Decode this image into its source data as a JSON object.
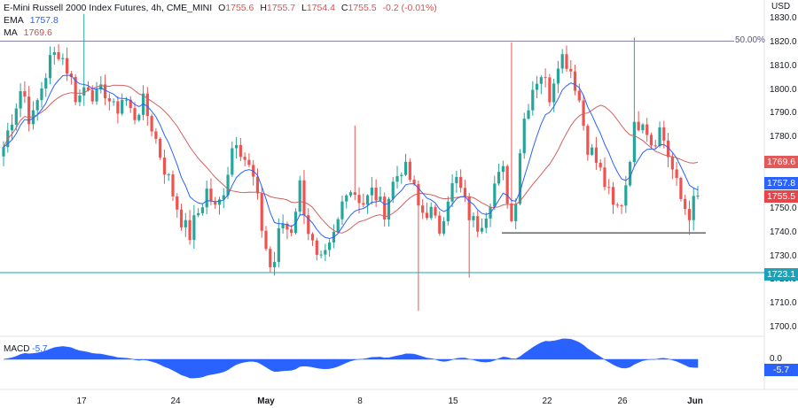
{
  "legend": {
    "symbol": "E-Mini Russell 2000 Index Futures, 4h, CME_MINI",
    "o_label": "O",
    "o": "1755.6",
    "h_label": "H",
    "h": "1755.7",
    "l_label": "L",
    "l": "1754.4",
    "c_label": "C",
    "c": "1755.5",
    "change": "-0.2 (-0.01%)",
    "ema_label": "EMA",
    "ema_value": "1757.8",
    "ma_label": "MA",
    "ma_value": "1769.6",
    "macd_label": "MACD",
    "macd_value": "-5.7"
  },
  "axis": {
    "unit": "USD",
    "y_ticks": [
      "1830.0",
      "1820.0",
      "1810.0",
      "1800.0",
      "1790.0",
      "1780.0",
      "1770.0",
      "1760.0",
      "1750.0",
      "1740.0",
      "1730.0",
      "1720.0",
      "1710.0",
      "1700.0"
    ],
    "x_ticks": [
      {
        "label": "17",
        "bold": false
      },
      {
        "label": "24",
        "bold": false
      },
      {
        "label": "May",
        "bold": true
      },
      {
        "label": "8",
        "bold": false
      },
      {
        "label": "15",
        "bold": false
      },
      {
        "label": "22",
        "bold": false
      },
      {
        "label": "26",
        "bold": false
      },
      {
        "label": "Jun",
        "bold": true
      }
    ],
    "macd_ticks": [
      "0.0"
    ]
  },
  "tags": {
    "ma": {
      "value": "1769.6",
      "color": "#e05a5a"
    },
    "ema": {
      "value": "1757.8",
      "color": "#2962ff"
    },
    "close": {
      "value": "1755.5",
      "color": "#e8454a"
    },
    "support": {
      "value": "1723.1",
      "color": "#1aa3b8"
    },
    "macd": {
      "value": "-5.7",
      "color": "#2962ff"
    }
  },
  "annotations": {
    "fib_label": "50.00%",
    "fib_level": 1820.5,
    "support_level": 1723.1,
    "recent_low_level": 1739.8
  },
  "colors": {
    "up": "#26a69a",
    "down": "#ef5350",
    "ema": "#2962ff",
    "ma": "#d16060",
    "macd": "#2962ff",
    "fib": "#8c82b0",
    "support": "#1aa3b8",
    "low_line": "#131722"
  },
  "chart_data": {
    "type": "candlestick",
    "title": "E-Mini Russell 2000 Index Futures, 4h, CME_MINI",
    "ylabel": "USD",
    "ylim": [
      1697,
      1833
    ],
    "x": [
      "17",
      "24",
      "May",
      "8",
      "15",
      "22",
      "26",
      "Jun"
    ],
    "close_path": [
      1776,
      1790,
      1802,
      1785,
      1800,
      1812,
      1817,
      1808,
      1795,
      1804,
      1796,
      1800,
      1790,
      1798,
      1788,
      1795,
      1785,
      1772,
      1760,
      1748,
      1738,
      1748,
      1758,
      1748,
      1762,
      1782,
      1772,
      1762,
      1740,
      1722,
      1745,
      1740,
      1760,
      1740,
      1725,
      1730,
      1742,
      1760,
      1757,
      1752,
      1758,
      1748,
      1760,
      1768,
      1762,
      1748,
      1750,
      1740,
      1756,
      1762,
      1750,
      1742,
      1748,
      1760,
      1765,
      1742,
      1784,
      1800,
      1808,
      1798,
      1815,
      1812,
      1800,
      1778,
      1770,
      1760,
      1748,
      1755,
      1782,
      1790,
      1778,
      1784,
      1770,
      1755,
      1748,
      1755
    ],
    "series": [
      {
        "name": "EMA",
        "last": 1757.8
      },
      {
        "name": "MA",
        "last": 1769.6
      },
      {
        "name": "MACD",
        "last": -5.7
      }
    ],
    "levels": [
      {
        "name": "50.00%",
        "value": 1820.5
      },
      {
        "value": 1723.1
      },
      {
        "value": 1739.8
      }
    ]
  }
}
